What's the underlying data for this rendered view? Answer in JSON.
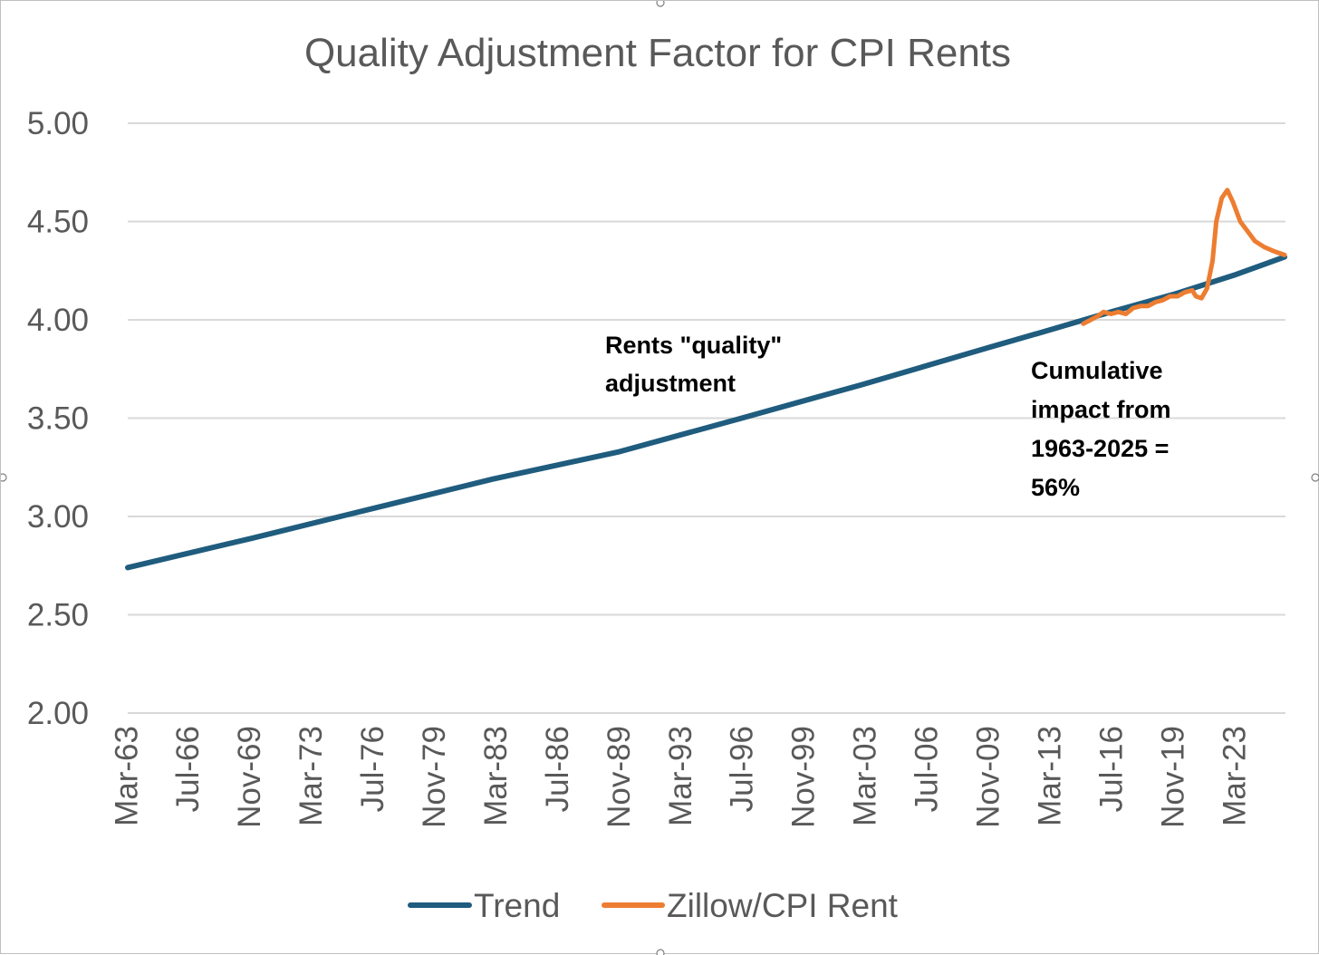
{
  "chart_data": {
    "type": "line",
    "title": "Quality Adjustment Factor for CPI Rents",
    "xlabel": "",
    "ylabel": "",
    "ylim": [
      2.0,
      5.0
    ],
    "yticks": [
      "2.00",
      "2.50",
      "3.00",
      "3.50",
      "4.00",
      "4.50",
      "5.00"
    ],
    "x_start": "Mar-63",
    "x_end": "Dec-25",
    "xtick_labels": [
      "Mar-63",
      "Jul-66",
      "Nov-69",
      "Mar-73",
      "Jul-76",
      "Nov-79",
      "Mar-83",
      "Jul-86",
      "Nov-89",
      "Mar-93",
      "Jul-96",
      "Nov-99",
      "Mar-03",
      "Jul-06",
      "Nov-09",
      "Mar-13",
      "Jul-16",
      "Nov-19",
      "Mar-23"
    ],
    "gridlines": true,
    "legend_position": "bottom",
    "series": [
      {
        "name": "Trend",
        "color": "#1f5c7e",
        "points": [
          [
            1963.25,
            2.74
          ],
          [
            1970.0,
            2.89
          ],
          [
            1976.5,
            3.04
          ],
          [
            1983.0,
            3.19
          ],
          [
            1989.9,
            3.33
          ],
          [
            1996.5,
            3.5
          ],
          [
            2003.0,
            3.67
          ],
          [
            2009.9,
            3.86
          ],
          [
            2013.25,
            3.95
          ],
          [
            2016.5,
            4.04
          ],
          [
            2019.9,
            4.13
          ],
          [
            2023.25,
            4.23
          ],
          [
            2025.9,
            4.32
          ]
        ]
      },
      {
        "name": "Zillow/CPI Rent",
        "color": "#ed7d31",
        "points": [
          [
            2015.0,
            3.98
          ],
          [
            2015.4,
            4.0
          ],
          [
            2015.8,
            4.02
          ],
          [
            2016.1,
            4.04
          ],
          [
            2016.5,
            4.03
          ],
          [
            2016.9,
            4.04
          ],
          [
            2017.3,
            4.03
          ],
          [
            2017.7,
            4.06
          ],
          [
            2018.1,
            4.07
          ],
          [
            2018.5,
            4.07
          ],
          [
            2018.9,
            4.09
          ],
          [
            2019.3,
            4.1
          ],
          [
            2019.7,
            4.12
          ],
          [
            2020.1,
            4.12
          ],
          [
            2020.5,
            4.14
          ],
          [
            2020.9,
            4.15
          ],
          [
            2021.1,
            4.12
          ],
          [
            2021.4,
            4.11
          ],
          [
            2021.7,
            4.16
          ],
          [
            2022.0,
            4.3
          ],
          [
            2022.2,
            4.5
          ],
          [
            2022.5,
            4.62
          ],
          [
            2022.8,
            4.66
          ],
          [
            2023.1,
            4.6
          ],
          [
            2023.5,
            4.5
          ],
          [
            2023.9,
            4.45
          ],
          [
            2024.3,
            4.4
          ],
          [
            2024.8,
            4.37
          ],
          [
            2025.3,
            4.35
          ],
          [
            2025.9,
            4.33
          ]
        ]
      }
    ],
    "annotations": [
      {
        "lines": [
          "Rents \"quality\"",
          "adjustment"
        ]
      },
      {
        "lines": [
          "Cumulative",
          "impact from",
          "1963-2025 =",
          "56%"
        ]
      }
    ]
  }
}
